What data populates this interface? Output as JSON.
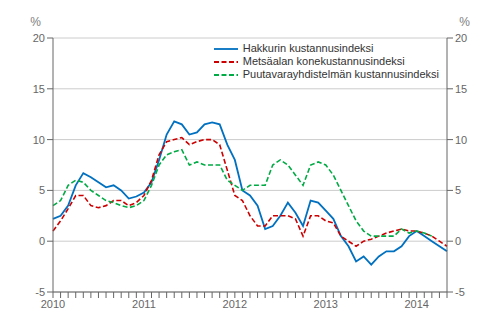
{
  "chart_data": {
    "type": "line",
    "categories": [
      "2010",
      null,
      null,
      null,
      null,
      null,
      null,
      null,
      null,
      null,
      null,
      null,
      "2011",
      null,
      null,
      null,
      null,
      null,
      null,
      null,
      null,
      null,
      null,
      null,
      "2012",
      null,
      null,
      null,
      null,
      null,
      null,
      null,
      null,
      null,
      null,
      null,
      "2013",
      null,
      null,
      null,
      null,
      null,
      null,
      null,
      null,
      null,
      null,
      null,
      "2014",
      null,
      null,
      null,
      null
    ],
    "ylabel": "%",
    "y2label": "%",
    "ylim": [
      -5,
      20
    ],
    "yticks": [
      -5,
      0,
      5,
      10,
      15,
      20
    ],
    "y2lim": [
      -5,
      20
    ],
    "y2ticks": [
      -5,
      0,
      5,
      10,
      15,
      20
    ],
    "grid": true,
    "legend": "upper right",
    "series": [
      {
        "name": "Hakkurin kustannusindeksi",
        "color": "#0070C0",
        "line_style": "solid",
        "values": [
          2.2,
          2.5,
          3.5,
          5.5,
          6.7,
          6.3,
          5.8,
          5.3,
          5.5,
          5.0,
          4.2,
          4.4,
          4.8,
          5.8,
          8.0,
          10.5,
          11.8,
          11.5,
          10.5,
          10.7,
          11.5,
          11.7,
          11.5,
          9.5,
          8.0,
          5.0,
          4.5,
          3.5,
          1.2,
          1.5,
          2.5,
          3.8,
          2.8,
          1.5,
          4.0,
          3.8,
          3.0,
          2.2,
          0.5,
          -0.5,
          -2.0,
          -1.5,
          -2.3,
          -1.5,
          -1.0,
          -1.0,
          -0.5,
          0.5,
          1.0,
          0.5,
          0.0,
          -0.5,
          -1.0
        ]
      },
      {
        "name": "Metsäalan konekustannusindeksi",
        "color": "#CC0000",
        "line_style": "dashed",
        "values": [
          1.0,
          2.0,
          3.2,
          4.5,
          4.5,
          3.5,
          3.3,
          3.5,
          4.0,
          4.0,
          3.5,
          3.8,
          4.5,
          6.0,
          8.5,
          9.8,
          10.0,
          10.2,
          9.5,
          9.8,
          10.0,
          10.0,
          9.5,
          7.0,
          4.5,
          4.0,
          2.5,
          1.5,
          1.5,
          2.5,
          2.5,
          2.5,
          2.2,
          0.5,
          2.5,
          2.5,
          2.0,
          1.8,
          0.5,
          0.0,
          -0.5,
          0.0,
          0.2,
          0.5,
          0.8,
          1.0,
          1.2,
          1.0,
          1.0,
          0.8,
          0.5,
          0.0,
          -0.5
        ]
      },
      {
        "name": "Puutavarayhdistelmän kustannusindeksi",
        "color": "#00AA44",
        "line_style": "dashed",
        "values": [
          3.5,
          4.0,
          5.5,
          6.0,
          5.8,
          5.0,
          4.5,
          4.0,
          3.8,
          3.5,
          3.3,
          3.5,
          4.0,
          5.5,
          7.5,
          8.5,
          8.8,
          9.0,
          7.5,
          7.8,
          7.5,
          7.5,
          7.5,
          6.0,
          5.5,
          5.0,
          5.5,
          5.5,
          5.5,
          7.5,
          8.0,
          7.5,
          6.5,
          5.5,
          7.5,
          7.8,
          7.5,
          6.5,
          5.0,
          3.5,
          2.0,
          1.0,
          0.5,
          0.5,
          0.5,
          0.5,
          1.2,
          0.8,
          1.0,
          0.8,
          0.5,
          null,
          null
        ]
      }
    ]
  }
}
